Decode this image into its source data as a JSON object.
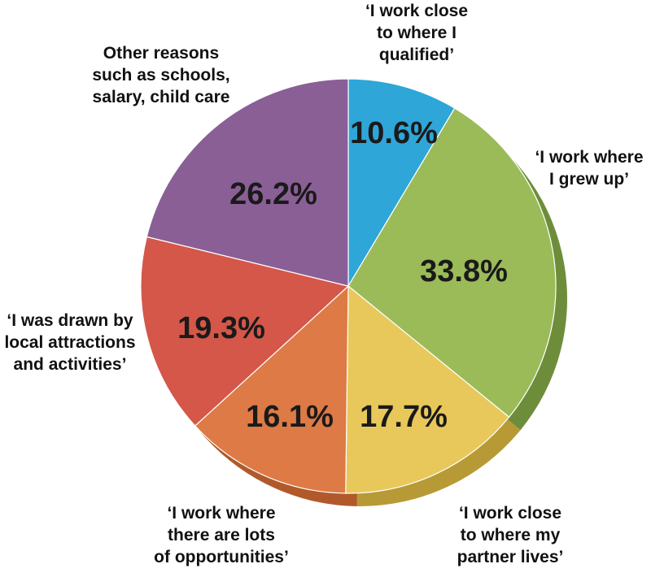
{
  "chart_data": {
    "type": "pie",
    "title": "",
    "slices": [
      {
        "label": "‘I work close to where I qualified’",
        "label_lines": [
          "‘I work close",
          "to where I",
          "qualified’"
        ],
        "value": 10.6,
        "display": "10.6%",
        "color": "#2ea6d8",
        "side_color": "#1f7fa8"
      },
      {
        "label": "‘I work where I grew up’",
        "label_lines": [
          "‘I work where",
          "I grew up’"
        ],
        "value": 33.8,
        "display": "33.8%",
        "color": "#9bbb59",
        "side_color": "#6e8d3a"
      },
      {
        "label": "‘I work close to where my partner lives’",
        "label_lines": [
          "‘I work close",
          "to where my",
          "partner lives’"
        ],
        "value": 17.7,
        "display": "17.7%",
        "color": "#e8c85a",
        "side_color": "#b79a36"
      },
      {
        "label": "‘I work where there are lots of opportunities’",
        "label_lines": [
          "‘I work where",
          "there are lots",
          "of opportunities’"
        ],
        "value": 16.1,
        "display": "16.1%",
        "color": "#dd7a46",
        "side_color": "#b1592b"
      },
      {
        "label": "‘I was drawn by local attractions and activities’",
        "label_lines": [
          "‘I was drawn by",
          "local attractions",
          "and activities’"
        ],
        "value": 19.3,
        "display": "19.3%",
        "color": "#d4574a",
        "side_color": "#a53c32"
      },
      {
        "label": "Other reasons such as schools, salary, child care",
        "label_lines": [
          "Other reasons",
          "such as schools,",
          "salary, child care"
        ],
        "value": 26.2,
        "display": "26.2%",
        "color": "#8a5f96",
        "side_color": "#664470"
      }
    ]
  }
}
